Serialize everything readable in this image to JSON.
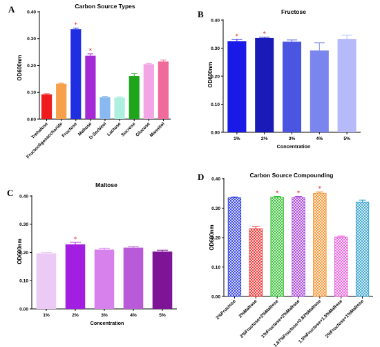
{
  "chart_data": [
    {
      "panel": "A",
      "type": "bar",
      "title": "Carbon Source Types",
      "xlabel": "",
      "ylabel": "OD600nm",
      "ylim": [
        0,
        0.4
      ],
      "yticks": [
        "0.00",
        "0.10",
        "0.20",
        "0.30",
        "0.40"
      ],
      "categories": [
        "Trehalose",
        "Fructooligosaccharide",
        "Fructose",
        "Maltose",
        "D-Sorbitol",
        "Lactose",
        "Sucrose",
        "Glucose",
        "Mannitol"
      ],
      "values": [
        0.092,
        0.132,
        0.335,
        0.236,
        0.082,
        0.081,
        0.16,
        0.205,
        0.215
      ],
      "errors": [
        0.002,
        0.002,
        0.004,
        0.007,
        0.002,
        0.002,
        0.009,
        0.003,
        0.005
      ],
      "colors": [
        "#ee1c1c",
        "#f7a04a",
        "#1f2ee0",
        "#a52ad6",
        "#8ab8f0",
        "#aef0e0",
        "#1ea51c",
        "#f2a6e6",
        "#f06a9a"
      ],
      "significant": [
        false,
        false,
        true,
        true,
        false,
        false,
        false,
        false,
        false
      ],
      "significance_marker": "*"
    },
    {
      "panel": "B",
      "type": "bar",
      "title": "Fructose",
      "xlabel": "Concentration",
      "ylabel": "OD600nm",
      "ylim": [
        0,
        0.4
      ],
      "yticks": [
        "0.00",
        "0.10",
        "0.20",
        "0.30",
        "0.40"
      ],
      "categories": [
        "1%",
        "2%",
        "3%",
        "4%",
        "5%"
      ],
      "values": [
        0.325,
        0.336,
        0.323,
        0.292,
        0.333
      ],
      "errors": [
        0.006,
        0.003,
        0.006,
        0.027,
        0.013
      ],
      "colors": [
        "#1a1ae8",
        "#1a1ab8",
        "#4a55e0",
        "#7a86ee",
        "#b6baf8"
      ],
      "significant": [
        true,
        true,
        false,
        false,
        false
      ],
      "significance_marker": "*"
    },
    {
      "panel": "C",
      "type": "bar",
      "title": "Maltose",
      "xlabel": "Concentration",
      "ylabel": "OD600nm",
      "ylim": [
        0,
        0.4
      ],
      "yticks": [
        "0.00",
        "0.10",
        "0.20",
        "0.30",
        "0.40"
      ],
      "categories": [
        "1%",
        "2%",
        "3%",
        "4%",
        "5%"
      ],
      "values": [
        0.197,
        0.229,
        0.21,
        0.217,
        0.203
      ],
      "errors": [
        0.003,
        0.007,
        0.005,
        0.004,
        0.005
      ],
      "colors": [
        "#eccaf6",
        "#a21ee0",
        "#d782ec",
        "#b95ad8",
        "#7e1496"
      ],
      "significant": [
        false,
        true,
        false,
        false,
        false
      ],
      "significance_marker": "*"
    },
    {
      "panel": "D",
      "type": "bar",
      "title": "Carbon Source Compounding",
      "xlabel": "",
      "ylabel": "OD600nm",
      "ylim": [
        0,
        0.4
      ],
      "yticks": [
        "0.00",
        "0.10",
        "0.20",
        "0.30",
        "0.40"
      ],
      "categories": [
        "2%Fructose",
        "2%Maltose",
        "2%Fructose+2%Maltose",
        "1%Fructose+2%Maltose",
        "1.67%Fructose+0.83%Maltose",
        "1.5%Fructose+1.5%Maltose",
        "2%Fructose+1%Maltose"
      ],
      "values": [
        0.335,
        0.23,
        0.337,
        0.336,
        0.35,
        0.202,
        0.32
      ],
      "errors": [
        0.003,
        0.007,
        0.003,
        0.004,
        0.005,
        0.003,
        0.007
      ],
      "colors": [
        "#2233dd",
        "#ee2222",
        "#22bb22",
        "#a035d8",
        "#f58a1e",
        "#ea54dc",
        "#2a9ccc"
      ],
      "pattern": "crosshatch",
      "significant": [
        false,
        false,
        true,
        true,
        true,
        false,
        false
      ],
      "significance_marker": "*"
    }
  ]
}
